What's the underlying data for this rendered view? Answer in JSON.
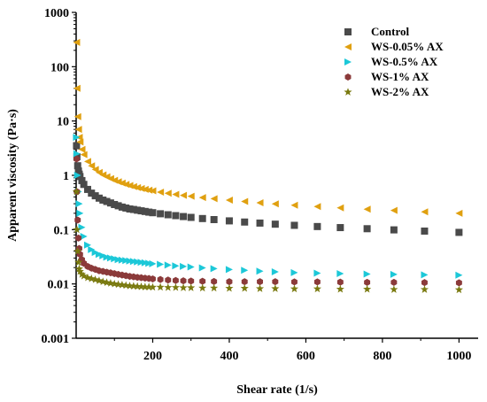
{
  "chart_data": {
    "type": "scatter",
    "title": "",
    "xlabel": "Shear rate (1/s)",
    "ylabel": "Apparent viscosity (Pa·s)",
    "xlim": [
      0,
      1050
    ],
    "ylim": [
      0.001,
      1000
    ],
    "yscale": "log",
    "x_tick_labels": [
      "200",
      "400",
      "600",
      "800",
      "1000"
    ],
    "x_ticks": [
      200,
      400,
      600,
      800,
      1000
    ],
    "y_tick_labels": [
      "0.001",
      "0.01",
      "0.1",
      "1",
      "10",
      "100",
      "1000"
    ],
    "y_ticks": [
      0.001,
      0.01,
      0.1,
      1,
      10,
      100,
      1000
    ],
    "legend_position": "top-right",
    "grid": false,
    "x": [
      1,
      2,
      4,
      6,
      8,
      10,
      15,
      20,
      30,
      40,
      50,
      60,
      70,
      80,
      90,
      100,
      110,
      120,
      130,
      140,
      150,
      160,
      170,
      180,
      190,
      200,
      220,
      240,
      260,
      280,
      300,
      330,
      360,
      400,
      440,
      480,
      520,
      570,
      630,
      690,
      760,
      830,
      910,
      1000
    ],
    "series": [
      {
        "name": "Control",
        "marker": "square",
        "color": "#4a4a4a",
        "values": [
          3.5,
          2.2,
          1.5,
          1.2,
          1.05,
          0.95,
          0.8,
          0.68,
          0.55,
          0.47,
          0.42,
          0.38,
          0.35,
          0.33,
          0.31,
          0.29,
          0.275,
          0.26,
          0.25,
          0.24,
          0.235,
          0.228,
          0.222,
          0.216,
          0.21,
          0.205,
          0.196,
          0.188,
          0.181,
          0.174,
          0.168,
          0.16,
          0.153,
          0.145,
          0.138,
          0.132,
          0.126,
          0.12,
          0.114,
          0.109,
          0.104,
          0.099,
          0.094,
          0.089
        ]
      },
      {
        "name": "WS-0.05% AX",
        "marker": "triangle-left",
        "color": "#e0a010",
        "values": [
          280,
          40,
          12,
          7,
          5,
          4.1,
          3.0,
          2.4,
          1.8,
          1.5,
          1.28,
          1.13,
          1.02,
          0.94,
          0.87,
          0.81,
          0.76,
          0.72,
          0.68,
          0.65,
          0.62,
          0.595,
          0.572,
          0.552,
          0.534,
          0.518,
          0.49,
          0.467,
          0.446,
          0.428,
          0.412,
          0.39,
          0.371,
          0.35,
          0.33,
          0.313,
          0.298,
          0.282,
          0.266,
          0.252,
          0.238,
          0.226,
          0.213,
          0.2
        ]
      },
      {
        "name": "WS-0.5% AX",
        "marker": "triangle-right",
        "color": "#1cc8d8",
        "values": [
          5,
          2.5,
          1.0,
          0.5,
          0.3,
          0.2,
          0.11,
          0.075,
          0.052,
          0.043,
          0.038,
          0.035,
          0.033,
          0.031,
          0.03,
          0.029,
          0.028,
          0.0275,
          0.027,
          0.0265,
          0.026,
          0.0255,
          0.025,
          0.0245,
          0.024,
          0.0235,
          0.023,
          0.0222,
          0.0215,
          0.021,
          0.0205,
          0.0198,
          0.0191,
          0.0184,
          0.0178,
          0.0172,
          0.0167,
          0.0162,
          0.0158,
          0.0155,
          0.0152,
          0.015,
          0.0147,
          0.0145
        ]
      },
      {
        "name": "WS-1% AX",
        "marker": "hexagon",
        "color": "#8b3a3a",
        "values": [
          2.0,
          0.5,
          0.15,
          0.07,
          0.045,
          0.035,
          0.028,
          0.024,
          0.021,
          0.0195,
          0.0185,
          0.0175,
          0.017,
          0.0165,
          0.016,
          0.0155,
          0.015,
          0.0146,
          0.0142,
          0.0138,
          0.0135,
          0.0132,
          0.013,
          0.0128,
          0.0126,
          0.0124,
          0.0121,
          0.0118,
          0.0116,
          0.0114,
          0.0113,
          0.0112,
          0.0111,
          0.011,
          0.011,
          0.011,
          0.011,
          0.0109,
          0.0109,
          0.0108,
          0.0107,
          0.0107,
          0.0106,
          0.0105
        ]
      },
      {
        "name": "WS-2% AX",
        "marker": "star",
        "color": "#7a7a10",
        "values": [
          0.5,
          0.1,
          0.04,
          0.025,
          0.019,
          0.017,
          0.015,
          0.014,
          0.013,
          0.0125,
          0.012,
          0.0115,
          0.011,
          0.0106,
          0.0103,
          0.01,
          0.0098,
          0.0096,
          0.0094,
          0.0092,
          0.0091,
          0.009,
          0.0089,
          0.0088,
          0.0088,
          0.0087,
          0.0087,
          0.0086,
          0.0086,
          0.0085,
          0.0085,
          0.0084,
          0.0084,
          0.0083,
          0.0083,
          0.0082,
          0.0082,
          0.0081,
          0.0081,
          0.008,
          0.008,
          0.0079,
          0.0079,
          0.0078
        ]
      }
    ]
  }
}
